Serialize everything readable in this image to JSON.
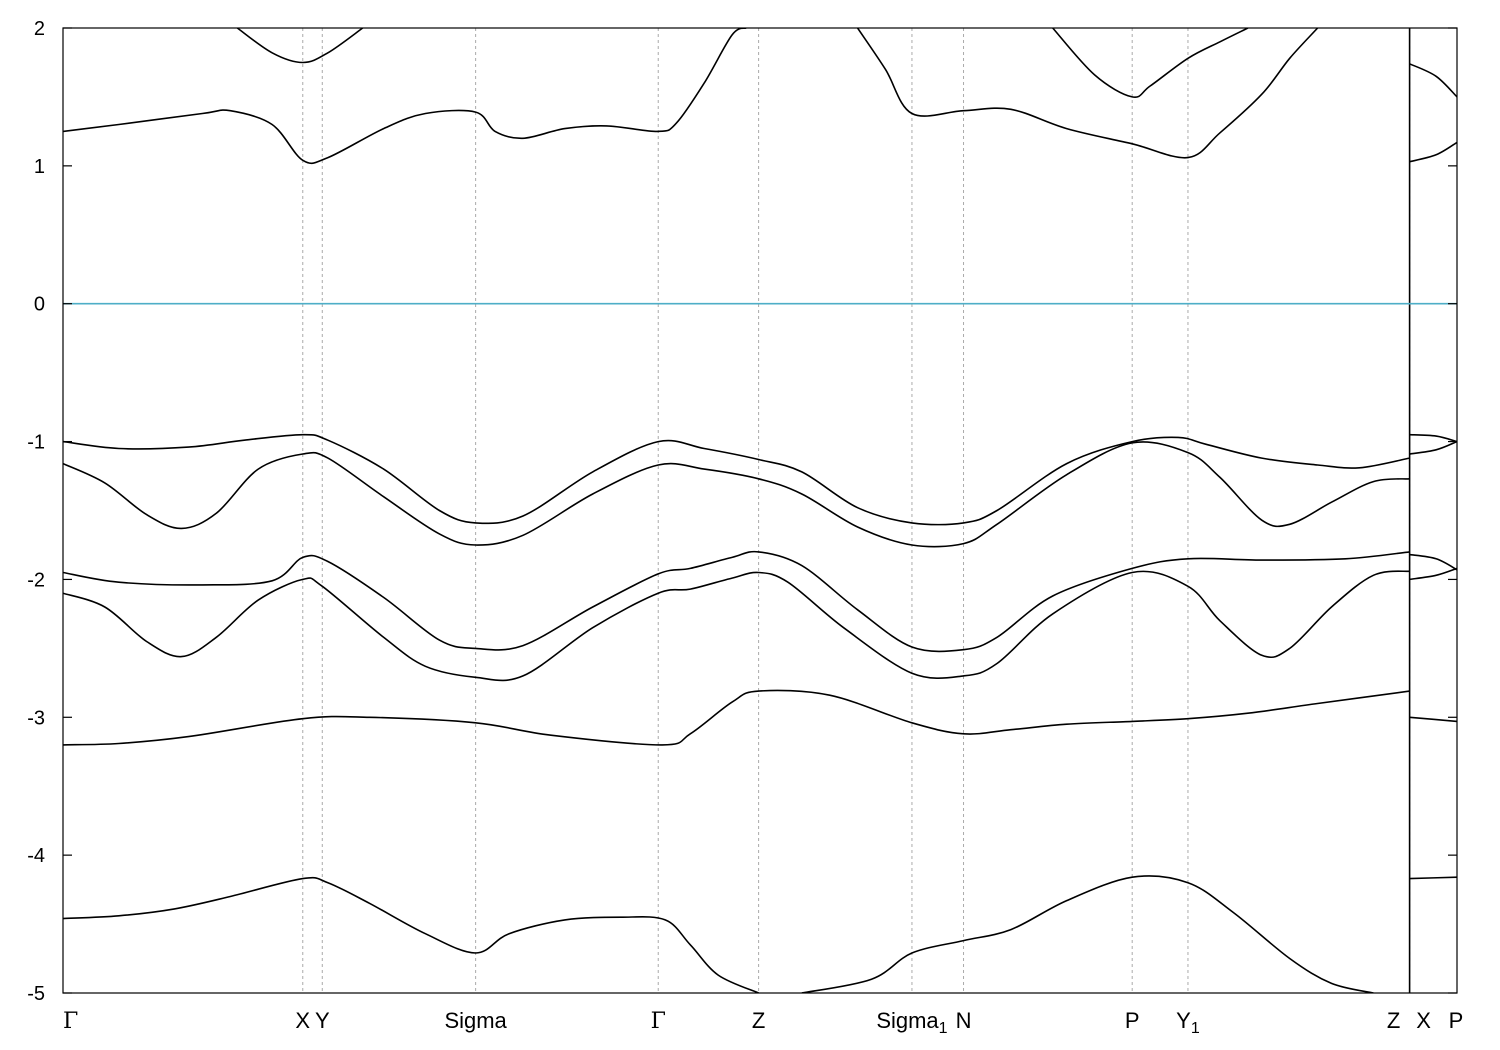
{
  "chart_data": {
    "type": "line",
    "title": "",
    "xlabel": "",
    "ylabel": "",
    "ylim": [
      -5,
      2
    ],
    "xlim": [
      0,
      1
    ],
    "yticks": [
      2,
      1,
      0,
      -1,
      -2,
      -3,
      -4,
      -5
    ],
    "grid": "vertical dashed lines at high-symmetry points",
    "fermi_level": 0,
    "fermi_color": "#4eaec7",
    "band_color": "#000000",
    "kpoints": [
      {
        "label": "Γ",
        "sub": "",
        "x": 0.0
      },
      {
        "label": "X",
        "sub": "",
        "x": 0.172
      },
      {
        "label": "Y",
        "sub": "",
        "x": 0.186
      },
      {
        "label": "Sigma",
        "sub": "",
        "x": 0.296
      },
      {
        "label": "Γ",
        "sub": "",
        "x": 0.427
      },
      {
        "label": "Z",
        "sub": "",
        "x": 0.499
      },
      {
        "label": "Sigma",
        "sub": "1",
        "x": 0.609
      },
      {
        "label": "N",
        "sub": "",
        "x": 0.646
      },
      {
        "label": "P",
        "sub": "",
        "x": 0.767
      },
      {
        "label": "Y",
        "sub": "1",
        "x": 0.807
      },
      {
        "label": "Z",
        "sub": "",
        "x": 0.966
      },
      {
        "label": "X",
        "sub": "",
        "x": 0.966
      },
      {
        "label": "P",
        "sub": "",
        "x": 1.0
      }
    ],
    "series": [
      {
        "values": [
          [
            0.0,
            -4.46
          ],
          [
            0.04,
            -4.44
          ],
          [
            0.08,
            -4.39
          ],
          [
            0.12,
            -4.3
          ],
          [
            0.172,
            -4.17
          ],
          [
            0.19,
            -4.2
          ],
          [
            0.22,
            -4.35
          ],
          [
            0.26,
            -4.57
          ],
          [
            0.296,
            -4.71
          ],
          [
            0.32,
            -4.57
          ],
          [
            0.36,
            -4.47
          ],
          [
            0.4,
            -4.45
          ],
          [
            0.432,
            -4.47
          ],
          [
            0.45,
            -4.65
          ],
          [
            0.47,
            -4.87
          ],
          [
            0.499,
            -5.0
          ]
        ]
      },
      {
        "values": [
          [
            0.53,
            -5.0
          ],
          [
            0.58,
            -4.9
          ],
          [
            0.609,
            -4.71
          ],
          [
            0.646,
            -4.62
          ],
          [
            0.68,
            -4.54
          ],
          [
            0.72,
            -4.33
          ],
          [
            0.767,
            -4.16
          ],
          [
            0.807,
            -4.2
          ],
          [
            0.84,
            -4.42
          ],
          [
            0.88,
            -4.75
          ],
          [
            0.91,
            -4.93
          ],
          [
            0.94,
            -5.0
          ]
        ]
      },
      {
        "values": [
          [
            0.966,
            -4.17
          ],
          [
            1.0,
            -4.16
          ]
        ]
      },
      {
        "values": [
          [
            0.0,
            -3.2
          ],
          [
            0.04,
            -3.19
          ],
          [
            0.09,
            -3.14
          ],
          [
            0.172,
            -3.01
          ],
          [
            0.22,
            -3.0
          ],
          [
            0.296,
            -3.04
          ],
          [
            0.35,
            -3.13
          ],
          [
            0.43,
            -3.2
          ],
          [
            0.45,
            -3.12
          ],
          [
            0.48,
            -2.89
          ],
          [
            0.499,
            -2.81
          ],
          [
            0.55,
            -2.84
          ],
          [
            0.609,
            -3.04
          ],
          [
            0.646,
            -3.12
          ],
          [
            0.68,
            -3.09
          ],
          [
            0.72,
            -3.05
          ],
          [
            0.767,
            -3.03
          ],
          [
            0.807,
            -3.01
          ],
          [
            0.85,
            -2.97
          ],
          [
            0.9,
            -2.9
          ],
          [
            0.966,
            -2.81
          ]
        ]
      },
      {
        "values": [
          [
            0.966,
            -3.0
          ],
          [
            1.0,
            -3.03
          ]
        ]
      },
      {
        "values": [
          [
            0.0,
            -2.1
          ],
          [
            0.03,
            -2.2
          ],
          [
            0.06,
            -2.45
          ],
          [
            0.085,
            -2.56
          ],
          [
            0.11,
            -2.42
          ],
          [
            0.14,
            -2.15
          ],
          [
            0.172,
            -2.0
          ],
          [
            0.186,
            -2.05
          ],
          [
            0.23,
            -2.42
          ],
          [
            0.26,
            -2.63
          ],
          [
            0.296,
            -2.71
          ],
          [
            0.33,
            -2.7
          ],
          [
            0.38,
            -2.35
          ],
          [
            0.427,
            -2.1
          ],
          [
            0.45,
            -2.07
          ],
          [
            0.48,
            -1.99
          ],
          [
            0.499,
            -1.95
          ],
          [
            0.52,
            -2.02
          ],
          [
            0.56,
            -2.35
          ],
          [
            0.609,
            -2.68
          ],
          [
            0.646,
            -2.7
          ],
          [
            0.67,
            -2.61
          ],
          [
            0.71,
            -2.25
          ],
          [
            0.767,
            -1.95
          ],
          [
            0.807,
            -2.05
          ],
          [
            0.83,
            -2.3
          ],
          [
            0.86,
            -2.55
          ],
          [
            0.88,
            -2.5
          ],
          [
            0.91,
            -2.2
          ],
          [
            0.94,
            -1.97
          ],
          [
            0.966,
            -1.94
          ]
        ]
      },
      {
        "values": [
          [
            0.0,
            -1.95
          ],
          [
            0.04,
            -2.02
          ],
          [
            0.1,
            -2.04
          ],
          [
            0.15,
            -2.01
          ],
          [
            0.172,
            -1.84
          ],
          [
            0.19,
            -1.87
          ],
          [
            0.23,
            -2.13
          ],
          [
            0.27,
            -2.44
          ],
          [
            0.296,
            -2.5
          ],
          [
            0.33,
            -2.48
          ],
          [
            0.38,
            -2.2
          ],
          [
            0.427,
            -1.96
          ],
          [
            0.45,
            -1.92
          ],
          [
            0.48,
            -1.84
          ],
          [
            0.499,
            -1.8
          ],
          [
            0.53,
            -1.9
          ],
          [
            0.57,
            -2.22
          ],
          [
            0.609,
            -2.49
          ],
          [
            0.646,
            -2.51
          ],
          [
            0.67,
            -2.42
          ],
          [
            0.71,
            -2.12
          ],
          [
            0.767,
            -1.92
          ],
          [
            0.807,
            -1.85
          ],
          [
            0.86,
            -1.86
          ],
          [
            0.92,
            -1.85
          ],
          [
            0.966,
            -1.8
          ]
        ]
      },
      {
        "values": [
          [
            0.966,
            -2.0
          ],
          [
            0.985,
            -1.97
          ],
          [
            1.0,
            -1.92
          ]
        ]
      },
      {
        "values": [
          [
            0.966,
            -1.82
          ],
          [
            0.985,
            -1.85
          ],
          [
            1.0,
            -1.93
          ]
        ]
      },
      {
        "values": [
          [
            0.0,
            -1.16
          ],
          [
            0.03,
            -1.3
          ],
          [
            0.06,
            -1.53
          ],
          [
            0.085,
            -1.63
          ],
          [
            0.11,
            -1.52
          ],
          [
            0.14,
            -1.2
          ],
          [
            0.172,
            -1.09
          ],
          [
            0.19,
            -1.12
          ],
          [
            0.23,
            -1.4
          ],
          [
            0.27,
            -1.67
          ],
          [
            0.296,
            -1.75
          ],
          [
            0.33,
            -1.68
          ],
          [
            0.38,
            -1.38
          ],
          [
            0.427,
            -1.17
          ],
          [
            0.46,
            -1.2
          ],
          [
            0.499,
            -1.27
          ],
          [
            0.53,
            -1.38
          ],
          [
            0.57,
            -1.62
          ],
          [
            0.609,
            -1.75
          ],
          [
            0.646,
            -1.74
          ],
          [
            0.67,
            -1.6
          ],
          [
            0.72,
            -1.24
          ],
          [
            0.767,
            -1.01
          ],
          [
            0.807,
            -1.08
          ],
          [
            0.83,
            -1.26
          ],
          [
            0.86,
            -1.57
          ],
          [
            0.88,
            -1.6
          ],
          [
            0.91,
            -1.44
          ],
          [
            0.94,
            -1.29
          ],
          [
            0.966,
            -1.27
          ]
        ]
      },
      {
        "values": [
          [
            0.0,
            -1.0
          ],
          [
            0.04,
            -1.05
          ],
          [
            0.09,
            -1.04
          ],
          [
            0.13,
            -0.99
          ],
          [
            0.172,
            -0.95
          ],
          [
            0.19,
            -0.99
          ],
          [
            0.23,
            -1.2
          ],
          [
            0.27,
            -1.5
          ],
          [
            0.296,
            -1.59
          ],
          [
            0.33,
            -1.54
          ],
          [
            0.38,
            -1.22
          ],
          [
            0.427,
            -1.0
          ],
          [
            0.46,
            -1.05
          ],
          [
            0.499,
            -1.13
          ],
          [
            0.53,
            -1.22
          ],
          [
            0.57,
            -1.48
          ],
          [
            0.609,
            -1.59
          ],
          [
            0.646,
            -1.59
          ],
          [
            0.67,
            -1.5
          ],
          [
            0.72,
            -1.16
          ],
          [
            0.767,
            -1.0
          ],
          [
            0.8,
            -0.97
          ],
          [
            0.82,
            -1.02
          ],
          [
            0.86,
            -1.12
          ],
          [
            0.9,
            -1.17
          ],
          [
            0.93,
            -1.19
          ],
          [
            0.966,
            -1.12
          ]
        ]
      },
      {
        "values": [
          [
            0.966,
            -1.09
          ],
          [
            0.985,
            -1.06
          ],
          [
            1.0,
            -1.0
          ]
        ]
      },
      {
        "values": [
          [
            0.966,
            -0.95
          ],
          [
            0.985,
            -0.96
          ],
          [
            1.0,
            -1.0
          ]
        ]
      },
      {
        "values": [
          [
            0.0,
            1.25
          ],
          [
            0.04,
            1.3
          ],
          [
            0.1,
            1.38
          ],
          [
            0.12,
            1.4
          ],
          [
            0.15,
            1.3
          ],
          [
            0.172,
            1.04
          ],
          [
            0.19,
            1.06
          ],
          [
            0.23,
            1.27
          ],
          [
            0.26,
            1.38
          ],
          [
            0.296,
            1.39
          ],
          [
            0.31,
            1.25
          ],
          [
            0.33,
            1.2
          ],
          [
            0.36,
            1.27
          ],
          [
            0.39,
            1.29
          ],
          [
            0.427,
            1.25
          ],
          [
            0.44,
            1.31
          ],
          [
            0.46,
            1.6
          ],
          [
            0.48,
            1.95
          ],
          [
            0.49,
            2.0
          ]
        ]
      },
      {
        "values": [
          [
            0.57,
            2.0
          ],
          [
            0.59,
            1.7
          ],
          [
            0.609,
            1.38
          ],
          [
            0.646,
            1.4
          ],
          [
            0.68,
            1.41
          ],
          [
            0.72,
            1.27
          ],
          [
            0.767,
            1.16
          ],
          [
            0.807,
            1.06
          ],
          [
            0.83,
            1.24
          ],
          [
            0.86,
            1.52
          ],
          [
            0.88,
            1.78
          ],
          [
            0.9,
            2.0
          ]
        ]
      },
      {
        "values": [
          [
            0.966,
            1.03
          ],
          [
            0.985,
            1.08
          ],
          [
            1.0,
            1.17
          ]
        ]
      },
      {
        "values": [
          [
            0.125,
            2.0
          ],
          [
            0.15,
            1.82
          ],
          [
            0.172,
            1.75
          ],
          [
            0.19,
            1.82
          ],
          [
            0.215,
            2.0
          ]
        ]
      },
      {
        "values": [
          [
            0.71,
            2.0
          ],
          [
            0.74,
            1.66
          ],
          [
            0.767,
            1.5
          ],
          [
            0.78,
            1.58
          ],
          [
            0.807,
            1.78
          ],
          [
            0.83,
            1.9
          ],
          [
            0.85,
            2.0
          ]
        ]
      },
      {
        "values": [
          [
            0.966,
            1.74
          ],
          [
            0.985,
            1.65
          ],
          [
            1.0,
            1.5
          ]
        ]
      }
    ],
    "segment_breaks": [
      0.966
    ]
  }
}
